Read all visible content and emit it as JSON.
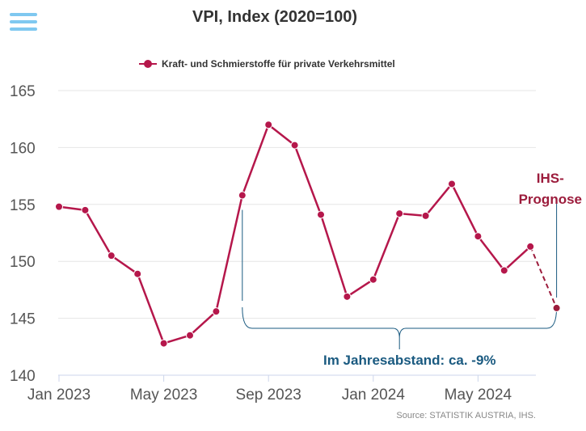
{
  "menu": {
    "icon": "hamburger-menu-icon"
  },
  "chart_data": {
    "type": "line",
    "title": "VPI, Index (2020=100)",
    "xlabel": "",
    "ylabel": "",
    "x_ticks": [
      "Jan 2023",
      "May 2023",
      "Sep 2023",
      "Jan 2024",
      "May 2024"
    ],
    "x": [
      "Jan 2023",
      "Feb 2023",
      "Mar 2023",
      "Apr 2023",
      "May 2023",
      "Jun 2023",
      "Jul 2023",
      "Aug 2023",
      "Sep 2023",
      "Oct 2023",
      "Nov 2023",
      "Dec 2023",
      "Jan 2024",
      "Feb 2024",
      "Mar 2024",
      "Apr 2024",
      "May 2024",
      "Jun 2024",
      "Jul 2024"
    ],
    "ylim": [
      140,
      165
    ],
    "y_ticks": [
      140,
      145,
      150,
      155,
      160,
      165
    ],
    "grid": true,
    "legend_position": "top-center",
    "series": [
      {
        "name": "Kraft- und Schmierstoffe für private Verkehrsmittel",
        "color": "#b5174b",
        "values": [
          154.8,
          154.5,
          150.5,
          148.9,
          142.8,
          143.5,
          145.6,
          155.8,
          162.0,
          160.2,
          154.1,
          146.9,
          148.4,
          154.2,
          154.0,
          156.8,
          152.2,
          149.2,
          151.3
        ]
      }
    ],
    "forecast": {
      "from": "Jul 2024",
      "to": "Aug 2024",
      "value": 145.9,
      "label_line1": "IHS-",
      "label_line2": "Prognose",
      "color": "#9c1c3c"
    },
    "annotation": {
      "text": "Im Jahresabstand: ca. -9%",
      "from": "Aug 2023",
      "to": "Aug 2024",
      "color": "#1a5a80"
    },
    "source": "Source: STATISTIK AUSTRIA, IHS."
  },
  "colors": {
    "menu": "#7fc8f0",
    "grid": "#e6e6e6",
    "axis": "#ccd6eb",
    "tick_label": "#555555",
    "line": "#b5174b",
    "forecast": "#9c1c3c",
    "annotation": "#1a5a80",
    "title": "#333333"
  }
}
